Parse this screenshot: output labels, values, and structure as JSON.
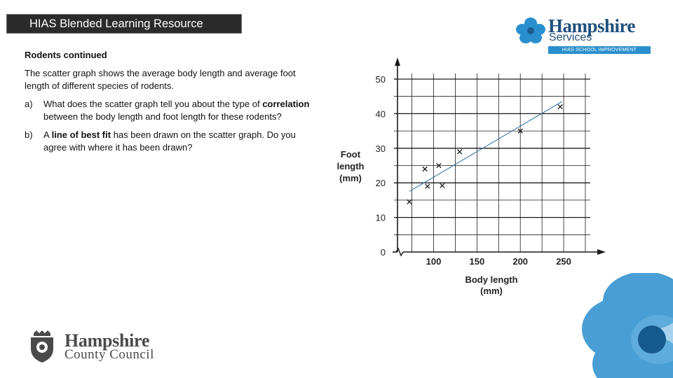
{
  "header": {
    "title": "HIAS Blended Learning Resource"
  },
  "logo_top": {
    "name": "Hampshire",
    "services": "Services",
    "strip": "HIAS SCHOOL IMPROVEMENT"
  },
  "content": {
    "heading": "Rodents continued",
    "intro": "The scatter graph shows the average body length and average foot length of different species of rodents.",
    "q_a": {
      "label": "a)",
      "pre": "What does the scatter graph tell you about the type of ",
      "bold": "correlation",
      "post": " between the body length and foot length for these rodents?"
    },
    "q_b": {
      "label": "b)",
      "pre": "A ",
      "bold": "line of best fit",
      "post": " has been drawn on the scatter graph. Do you agree with where it has been drawn?"
    }
  },
  "chart_data": {
    "type": "scatter",
    "xlabel": [
      "Body length",
      "(mm)"
    ],
    "ylabel": [
      "Foot",
      "length",
      "(mm)"
    ],
    "x_ticks": [
      100,
      150,
      200,
      250
    ],
    "y_ticks": [
      0,
      10,
      20,
      30,
      40,
      50
    ],
    "xlim": [
      50,
      275
    ],
    "ylim": [
      0,
      50
    ],
    "axis_break_x": true,
    "grid": true,
    "points": [
      {
        "x": 72,
        "y": 14.5
      },
      {
        "x": 90,
        "y": 24
      },
      {
        "x": 93,
        "y": 19
      },
      {
        "x": 106,
        "y": 25
      },
      {
        "x": 110,
        "y": 19.2
      },
      {
        "x": 130,
        "y": 29
      },
      {
        "x": 200,
        "y": 35
      },
      {
        "x": 246,
        "y": 42
      }
    ],
    "best_fit": {
      "x1": 72,
      "y1": 17.5,
      "x2": 248,
      "y2": 43.5
    },
    "colors": {
      "axis": "#1a1a1a",
      "grid": "#1a1a1a",
      "line": "#3b78a8",
      "marker": "#1a1a1a"
    }
  },
  "logo_bottom": {
    "line1": "Hampshire",
    "line2": "County Council"
  }
}
